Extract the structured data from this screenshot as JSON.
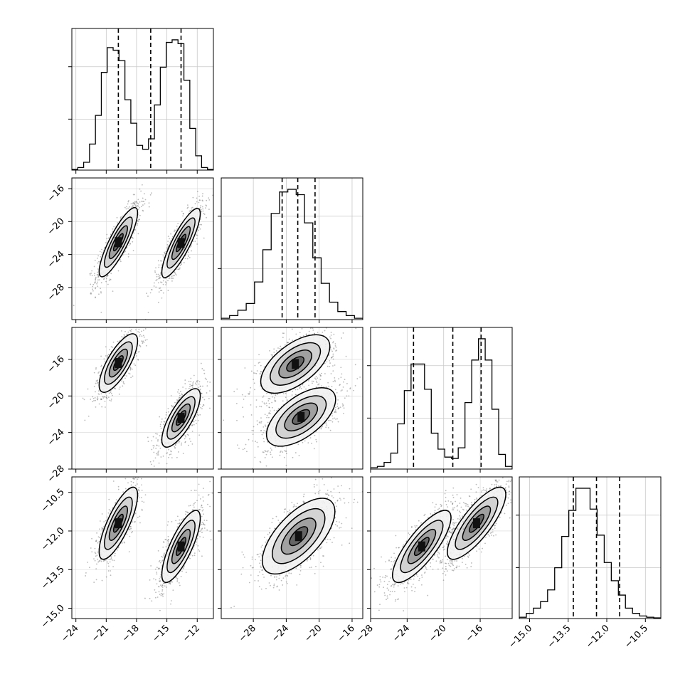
{
  "chart_data": {
    "type": "corner",
    "parameters": [
      "",
      "",
      "",
      ""
    ],
    "quantiles": [
      0.16,
      0.5,
      0.84
    ],
    "quantile_values": [
      [
        -19.8,
        -16.6,
        -13.6
      ],
      [
        -24.5,
        -22.6,
        -20.5
      ],
      [
        -23.3,
        -19.0,
        -15.9
      ],
      [
        -13.3,
        -12.4,
        -11.5
      ]
    ],
    "ranges": [
      [
        -24.4,
        -10.4
      ],
      [
        -31.9,
        -14.7
      ],
      [
        -28.0,
        -12.5
      ],
      [
        -15.4,
        -9.9
      ]
    ],
    "ticks": [
      [
        -24,
        -21,
        -18,
        -15,
        -12
      ],
      [
        -28,
        -24,
        -20,
        -16
      ],
      [
        -28,
        -24,
        -20,
        -16
      ],
      [
        -15.0,
        -13.5,
        -12.0,
        -10.5
      ]
    ],
    "tick_labels": [
      [
        "−24",
        "−21",
        "−18",
        "−15",
        "−12"
      ],
      [
        "−28",
        "−24",
        "−20",
        "−16"
      ],
      [
        "−28",
        "−24",
        "−20",
        "−16"
      ],
      [
        "−15.0",
        "−13.5",
        "−12.0",
        "−10.5"
      ]
    ],
    "histograms": [
      [
        0.005,
        0.02,
        0.06,
        0.2,
        0.42,
        0.75,
        0.94,
        0.92,
        0.84,
        0.54,
        0.36,
        0.19,
        0.16,
        0.24,
        0.5,
        0.79,
        0.98,
        1.0,
        0.97,
        0.69,
        0.32,
        0.11,
        0.02,
        0.005
      ],
      [
        0.01,
        0.03,
        0.07,
        0.12,
        0.28,
        0.52,
        0.79,
        0.95,
        0.97,
        0.93,
        0.72,
        0.46,
        0.27,
        0.13,
        0.06,
        0.03,
        0.01
      ],
      [
        0.01,
        0.02,
        0.05,
        0.12,
        0.34,
        0.59,
        0.79,
        0.79,
        0.6,
        0.27,
        0.15,
        0.09,
        0.08,
        0.16,
        0.5,
        0.82,
        0.98,
        0.82,
        0.45,
        0.11,
        0.02
      ],
      [
        0.01,
        0.04,
        0.08,
        0.13,
        0.22,
        0.39,
        0.63,
        0.83,
        1.0,
        1.0,
        0.84,
        0.64,
        0.43,
        0.29,
        0.18,
        0.08,
        0.04,
        0.02,
        0.01,
        0.005
      ]
    ],
    "clusters": [
      [
        [
          -19.8,
          -22.5,
          -16.4,
          -11.7
        ],
        [
          -13.6,
          -22.6,
          -22.4,
          -12.6
        ]
      ],
      [
        [
          -22.9,
          -16.5,
          -12.6
        ],
        [
          -22.2,
          -22.3,
          -11.8
        ]
      ]
    ],
    "grid": true,
    "legend": "none"
  }
}
